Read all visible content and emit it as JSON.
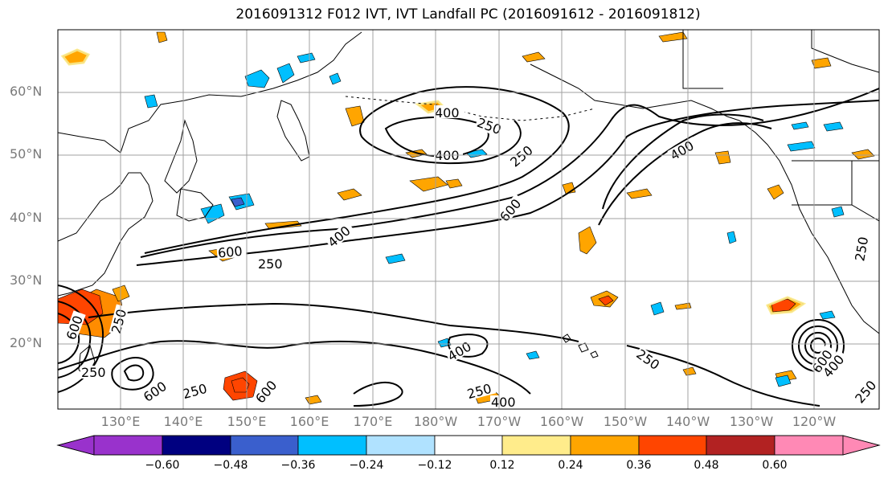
{
  "title": "2016091312 F012 IVT, IVT Landfall PC (2016091612 - 2016091812)",
  "map": {
    "lat_labels": [
      "60°N",
      "50°N",
      "40°N",
      "30°N",
      "20°N"
    ],
    "lon_labels": [
      "130°E",
      "140°E",
      "150°E",
      "160°E",
      "170°E",
      "180°W",
      "170°W",
      "160°W",
      "150°W",
      "140°W",
      "130°W",
      "120°W"
    ],
    "contour_levels": [
      "250",
      "400",
      "600"
    ],
    "contour_color": "#000000",
    "grid_on": true
  },
  "colorbar": {
    "ticks": [
      "−0.60",
      "−0.48",
      "−0.36",
      "−0.24",
      "−0.12",
      "0.12",
      "0.24",
      "0.36",
      "0.48",
      "0.60"
    ],
    "colors": [
      "#9932cc",
      "#000080",
      "#3a5fcd",
      "#00bfff",
      "#b0e2ff",
      "#ffffff",
      "#ffec8b",
      "#ffa500",
      "#ff4500",
      "#b22222",
      "#ff89b5"
    ]
  }
}
